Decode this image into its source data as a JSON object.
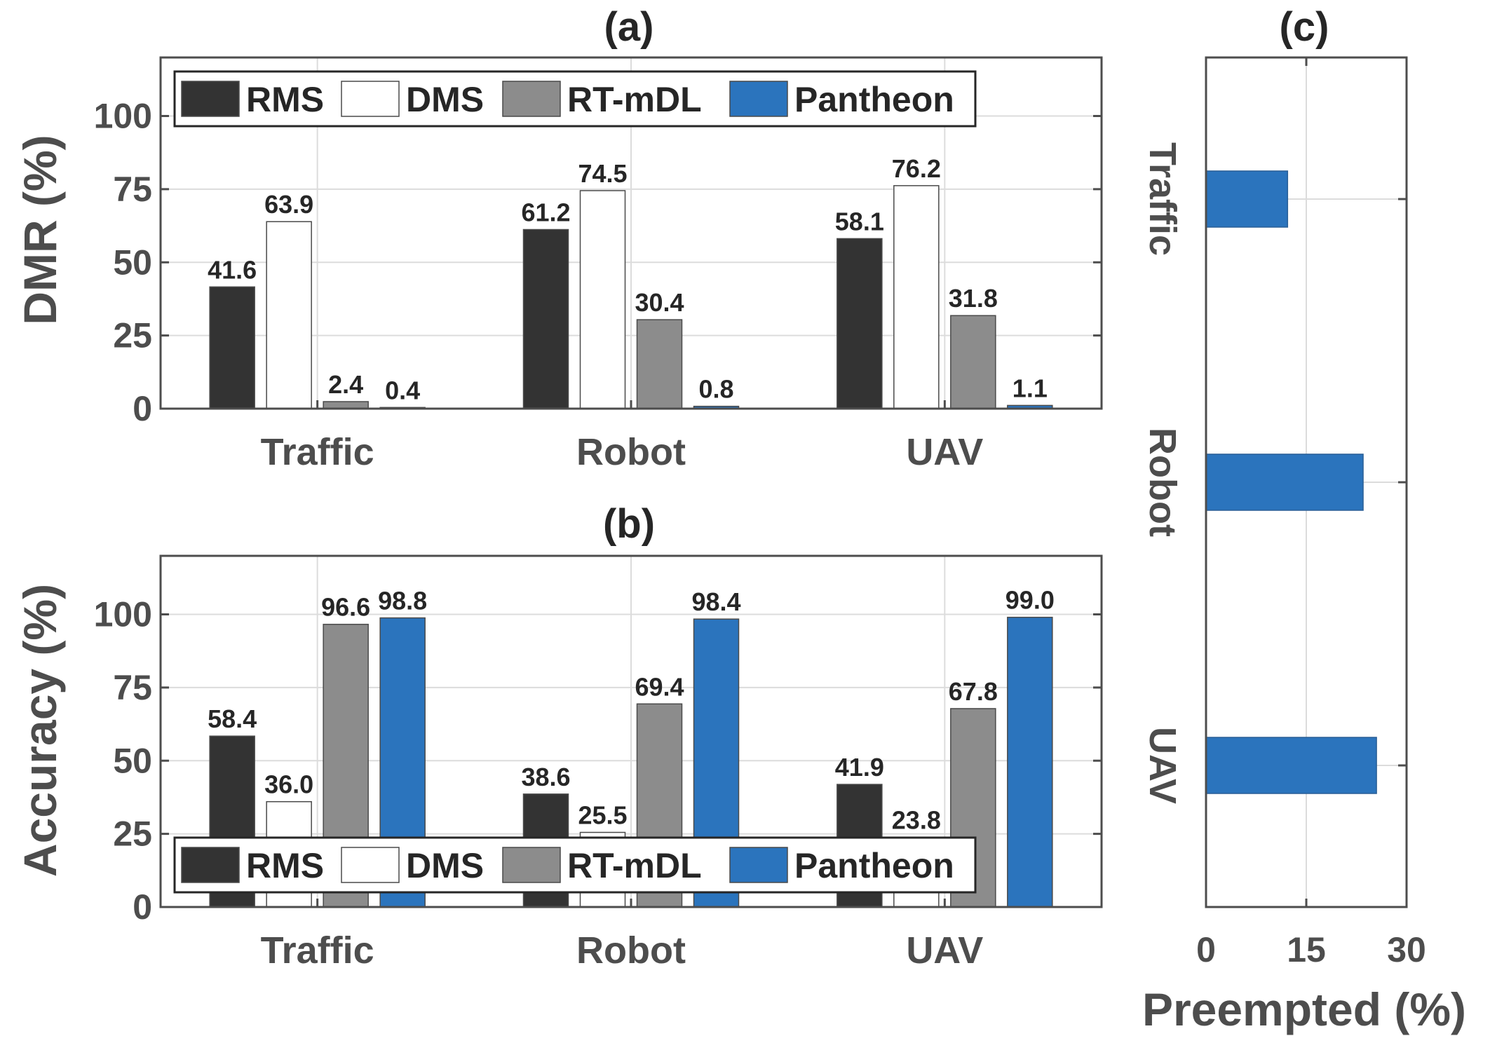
{
  "colors": {
    "RMS": "#333333",
    "DMS": "#ffffff",
    "RT-mDL": "#8c8c8c",
    "Pantheon": "#2b74bd",
    "grid": "#dcdcdc",
    "axis": "#4d4d4d"
  },
  "chart_data": [
    {
      "id": "a",
      "type": "bar",
      "title": "(a)",
      "ylabel": "DMR (%)",
      "xlabel": "",
      "categories": [
        "Traffic",
        "Robot",
        "UAV"
      ],
      "ylim": [
        0,
        120
      ],
      "yticks": [
        0,
        25,
        50,
        75,
        100
      ],
      "grid": true,
      "legend": "top",
      "series": [
        {
          "name": "RMS",
          "values": [
            41.6,
            61.2,
            58.1
          ],
          "labels": [
            "41.6",
            "61.2",
            "58.1"
          ]
        },
        {
          "name": "DMS",
          "values": [
            63.9,
            74.5,
            76.2
          ],
          "labels": [
            "63.9",
            "74.5",
            "76.2"
          ]
        },
        {
          "name": "RT-mDL",
          "values": [
            2.4,
            30.4,
            31.8
          ],
          "labels": [
            "2.4",
            "30.4",
            "31.8"
          ]
        },
        {
          "name": "Pantheon",
          "values": [
            0.4,
            0.8,
            1.1
          ],
          "labels": [
            "0.4",
            "0.8",
            "1.1"
          ]
        }
      ]
    },
    {
      "id": "b",
      "type": "bar",
      "title": "(b)",
      "ylabel": "Accuracy (%)",
      "xlabel": "",
      "categories": [
        "Traffic",
        "Robot",
        "UAV"
      ],
      "ylim": [
        0,
        120
      ],
      "yticks": [
        0,
        25,
        50,
        75,
        100
      ],
      "grid": true,
      "legend": "bottom",
      "series": [
        {
          "name": "RMS",
          "values": [
            58.4,
            38.6,
            41.9
          ],
          "labels": [
            "58.4",
            "38.6",
            "41.9"
          ]
        },
        {
          "name": "DMS",
          "values": [
            36.0,
            25.5,
            23.8
          ],
          "labels": [
            "36.0",
            "25.5",
            "23.8"
          ]
        },
        {
          "name": "RT-mDL",
          "values": [
            96.6,
            69.4,
            67.8
          ],
          "labels": [
            "96.6",
            "69.4",
            "67.8"
          ]
        },
        {
          "name": "Pantheon",
          "values": [
            98.8,
            98.4,
            99.0
          ],
          "labels": [
            "98.8",
            "98.4",
            "99.0"
          ]
        }
      ]
    },
    {
      "id": "c",
      "type": "bar",
      "orientation": "horizontal",
      "title": "(c)",
      "xlabel": "Preempted (%)",
      "ylabel": "",
      "categories": [
        "Traffic",
        "Robot",
        "UAV"
      ],
      "xlim": [
        0,
        30
      ],
      "xticks": [
        0,
        15,
        30
      ],
      "grid": true,
      "series": [
        {
          "name": "Pantheon",
          "values": [
            12.2,
            23.5,
            25.5
          ]
        }
      ]
    }
  ]
}
